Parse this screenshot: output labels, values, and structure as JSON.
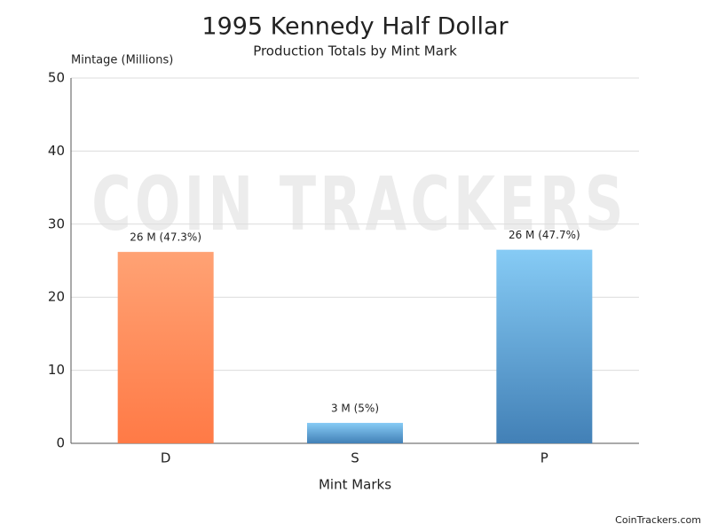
{
  "chart_data": {
    "type": "bar",
    "title": "1995 Kennedy Half Dollar",
    "subtitle": "Production Totals by Mint Mark",
    "y_label": "Mintage (Millions)",
    "x_label": "Mint Marks",
    "categories": [
      "D",
      "S",
      "P"
    ],
    "values": [
      26.2,
      2.8,
      26.5
    ],
    "value_labels": [
      "26 M (47.3%)",
      "3 M (5%)",
      "26 M (47.7%)"
    ],
    "colors": [
      {
        "top": "#ffa274",
        "bottom": "#ff7a46"
      },
      {
        "top": "#86cbf5",
        "bottom": "#4280b6"
      },
      {
        "top": "#86cbf5",
        "bottom": "#4280b6"
      }
    ],
    "ylim": [
      0,
      50
    ],
    "yticks": [
      0,
      10,
      20,
      30,
      40,
      50
    ],
    "grid": true,
    "watermark": "COIN TRACKERS",
    "footer": "CoinTrackers.com"
  }
}
